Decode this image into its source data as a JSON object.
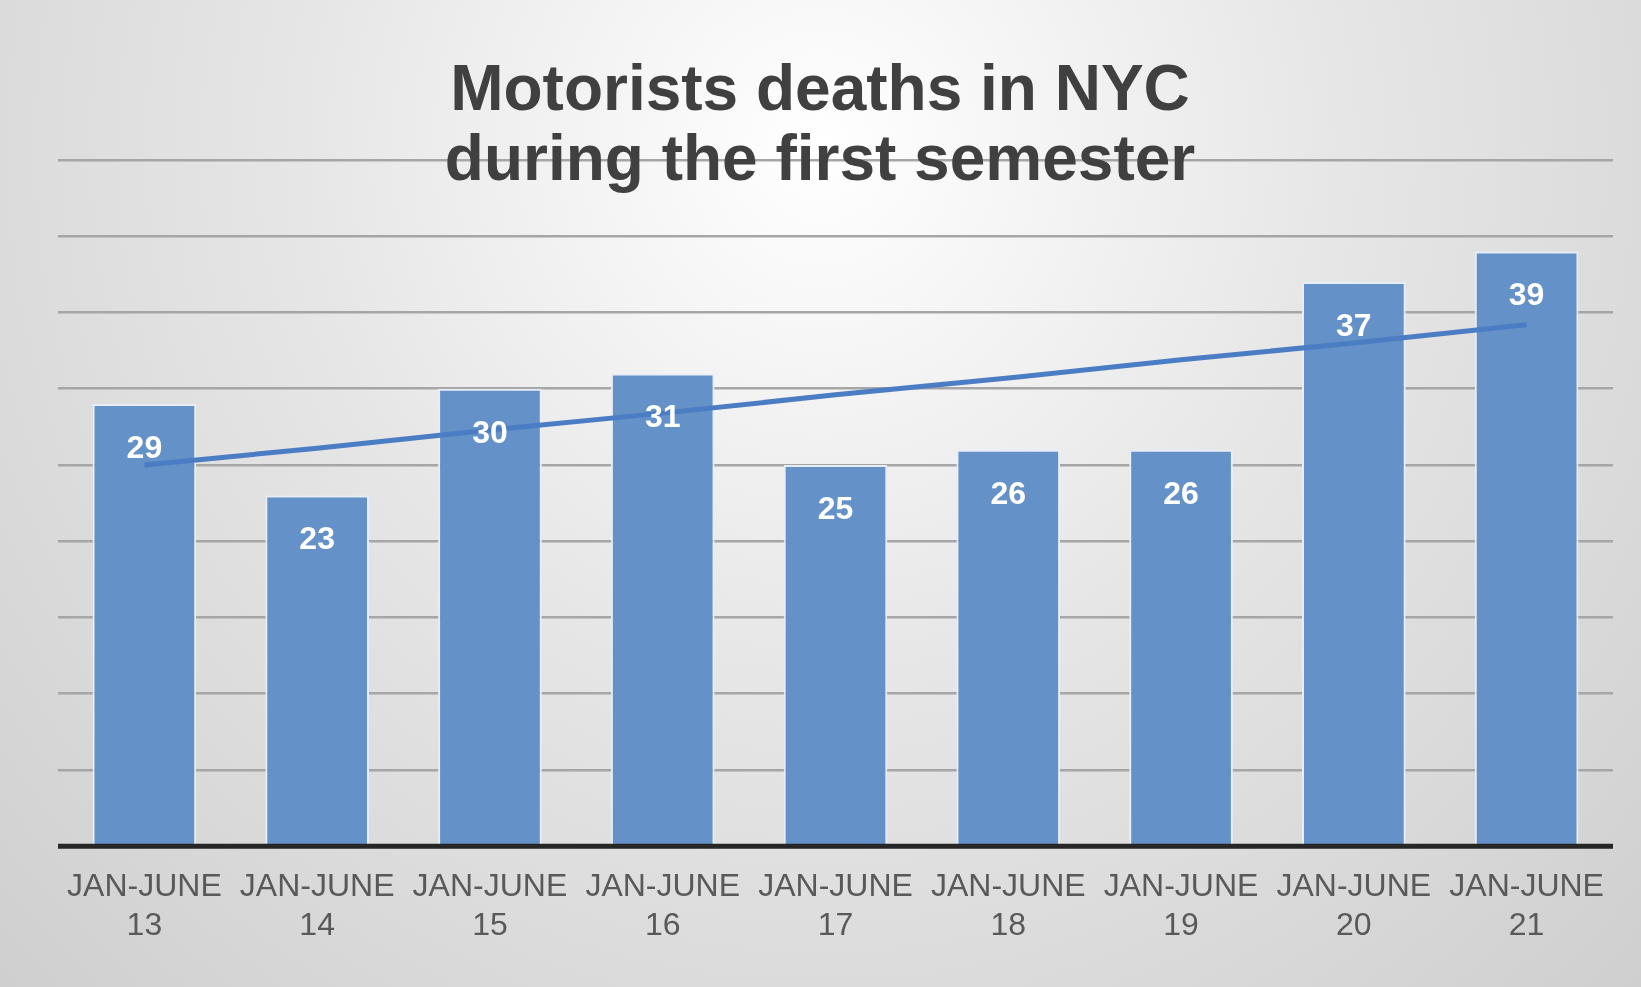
{
  "chart_data": {
    "type": "bar",
    "title": "Motorists deaths in NYC during the first semester",
    "categories": [
      "JAN-JUNE 13",
      "JAN-JUNE 14",
      "JAN-JUNE 15",
      "JAN-JUNE 16",
      "JAN-JUNE 17",
      "JAN-JUNE 18",
      "JAN-JUNE 19",
      "JAN-JUNE 20",
      "JAN-JUNE 21"
    ],
    "series": [
      {
        "color": "#6491c8",
        "values": [
          29,
          23,
          30,
          31,
          25,
          26,
          26,
          37,
          39
        ],
        "value_labels": [
          "29",
          "23",
          "30",
          "31",
          "25",
          "26",
          "26",
          "37",
          "39"
        ]
      },
      {
        "type": "line",
        "color": "#4a7dc3",
        "values": [
          25.0,
          26.1,
          27.3,
          28.4,
          29.6,
          30.7,
          31.9,
          33.0,
          34.2
        ]
      }
    ],
    "ylim": [
      0,
      45
    ],
    "yticks": [
      {
        "value": 0,
        "label": null
      },
      {
        "value": 5,
        "label": null
      },
      {
        "value": 10,
        "label": null
      },
      {
        "value": 15,
        "label": null
      },
      {
        "value": 20,
        "label": null
      },
      {
        "value": 25,
        "label": null
      },
      {
        "value": 30,
        "label": null
      },
      {
        "value": 35,
        "label": null
      },
      {
        "value": 40,
        "label": null
      },
      {
        "value": 45,
        "label": null
      }
    ],
    "grid": "y",
    "tick_labels": "x",
    "legend": false,
    "marker": "none"
  }
}
